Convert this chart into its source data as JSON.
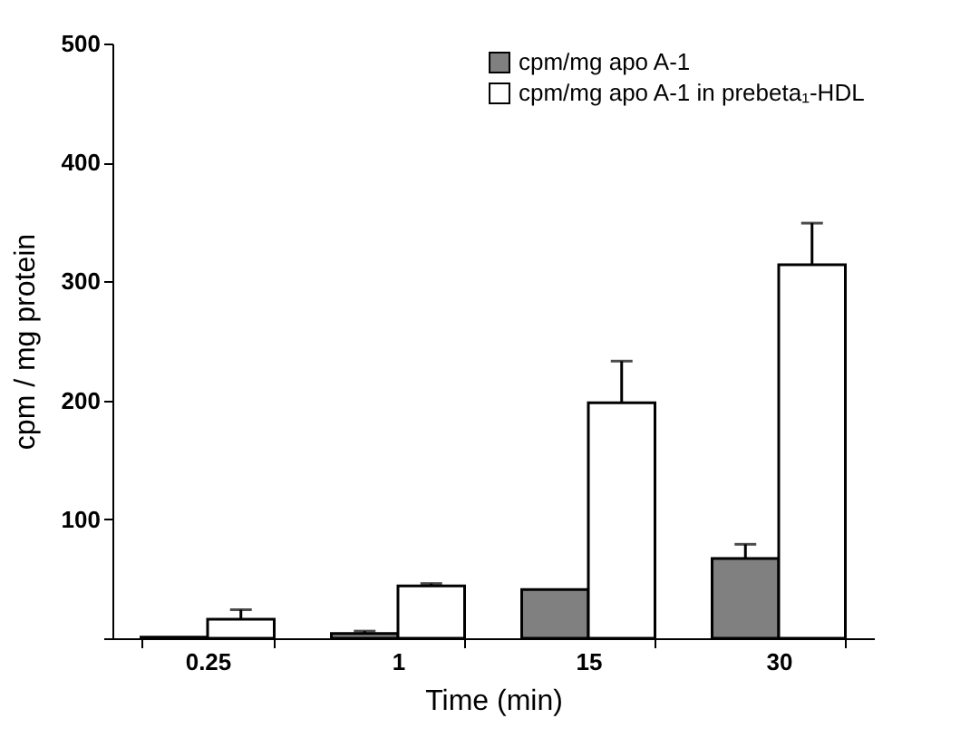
{
  "chart_data": {
    "type": "bar",
    "xlabel": "Time (min)",
    "ylabel": "cpm / mg protein",
    "categories": [
      "0.25",
      "1",
      "15",
      "30"
    ],
    "series": [
      {
        "name": "cpm/mg apo A-1",
        "color": "#808080",
        "values": [
          1,
          4,
          41,
          67
        ],
        "errors": [
          null,
          2,
          null,
          12
        ]
      },
      {
        "name": "cpm/mg apo A-1 in prebeta₁-HDL",
        "color": "#ffffff",
        "values": [
          16,
          44,
          198,
          314
        ],
        "errors": [
          8,
          2,
          35,
          35
        ]
      }
    ],
    "ylim": [
      0,
      500
    ],
    "yticks": [
      {
        "value": 0,
        "label": null
      },
      100,
      200,
      300,
      400,
      500
    ],
    "grid": false,
    "legend": "top right"
  }
}
